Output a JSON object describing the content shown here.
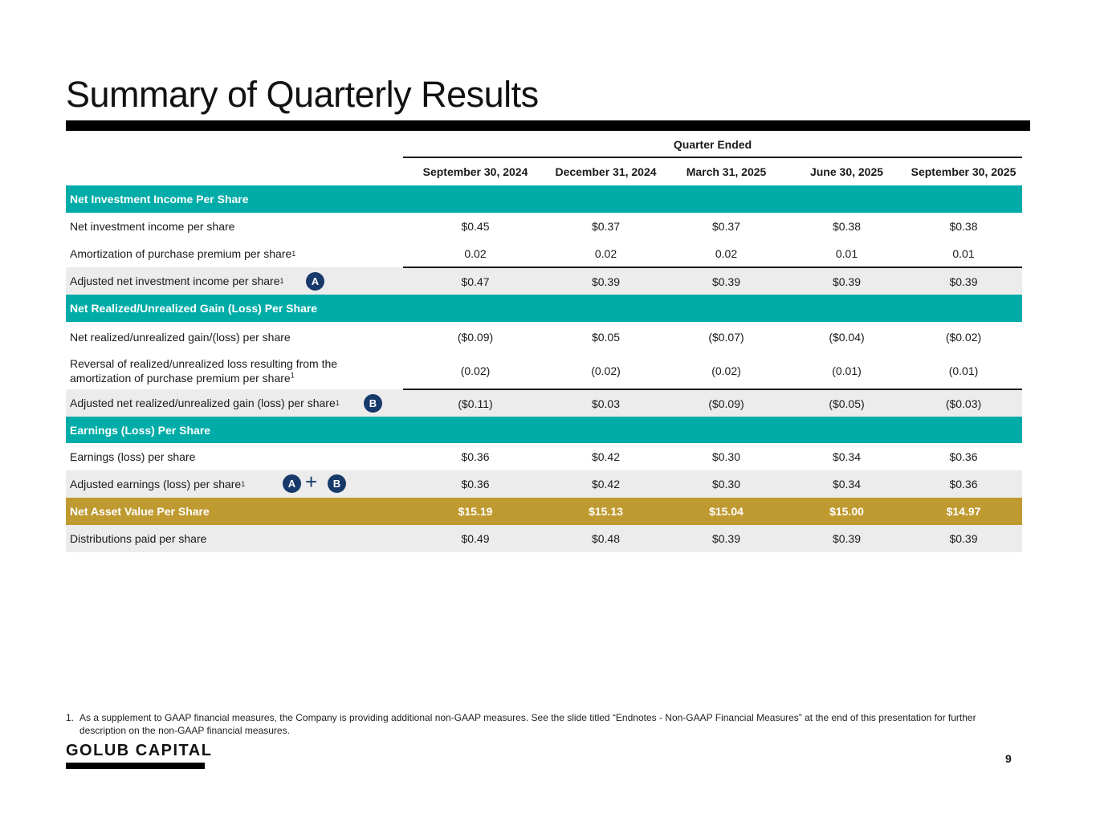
{
  "title": "Summary of Quarterly Results",
  "quarter_ended": "Quarter Ended",
  "columns": [
    "September 30, 2024",
    "December 31, 2024",
    "March 31, 2025",
    "June 30, 2025",
    "September 30, 2025"
  ],
  "sections": {
    "nii": "Net Investment Income Per Share",
    "gain": "Net Realized/Unrealized Gain (Loss) Per Share",
    "eps": "Earnings (Loss) Per Share"
  },
  "rows": {
    "nii": {
      "label": "Net investment income per share",
      "values": [
        "$0.45",
        "$0.37",
        "$0.37",
        "$0.38",
        "$0.38"
      ]
    },
    "amort": {
      "label": "Amortization of purchase premium per share",
      "sup": "1",
      "values": [
        "0.02",
        "0.02",
        "0.02",
        "0.01",
        "0.01"
      ]
    },
    "adj_nii": {
      "label": "Adjusted net investment income per share",
      "sup": "1",
      "values": [
        "$0.47",
        "$0.39",
        "$0.39",
        "$0.39",
        "$0.39"
      ]
    },
    "gain": {
      "label": "Net realized/unrealized gain/(loss) per share",
      "values": [
        "($0.09)",
        "$0.05",
        "($0.07)",
        "($0.04)",
        "($0.02)"
      ]
    },
    "reversal": {
      "label_line1": "Reversal of realized/unrealized loss resulting from the",
      "label_line2": "amortization of purchase premium per share",
      "sup": "1",
      "values": [
        "(0.02)",
        "(0.02)",
        "(0.02)",
        "(0.01)",
        "(0.01)"
      ]
    },
    "adj_gain": {
      "label": "Adjusted net realized/unrealized gain (loss) per share",
      "sup": "1",
      "values": [
        "($0.11)",
        "$0.03",
        "($0.09)",
        "($0.05)",
        "($0.03)"
      ]
    },
    "eps": {
      "label": "Earnings (loss) per share",
      "values": [
        "$0.36",
        "$0.42",
        "$0.30",
        "$0.34",
        "$0.36"
      ]
    },
    "adj_eps": {
      "label": "Adjusted earnings (loss) per share",
      "sup": "1",
      "values": [
        "$0.36",
        "$0.42",
        "$0.30",
        "$0.34",
        "$0.36"
      ]
    },
    "nav": {
      "label": "Net Asset Value Per Share",
      "values": [
        "$15.19",
        "$15.13",
        "$15.04",
        "$15.00",
        "$14.97"
      ]
    },
    "dist": {
      "label": "Distributions paid per share",
      "values": [
        "$0.49",
        "$0.48",
        "$0.39",
        "$0.39",
        "$0.39"
      ]
    }
  },
  "badges": {
    "a": "A",
    "b": "B",
    "plus": "+"
  },
  "footnote": {
    "num": "1.",
    "text": "As a supplement to GAAP financial measures, the Company is providing additional non-GAAP measures. See the slide titled “Endnotes - Non-GAAP Financial Measures” at the end of this presentation for further description on the non-GAAP financial measures."
  },
  "logo": "GOLUB CAPITAL",
  "page_number": "9",
  "colors": {
    "teal": "#00aca8",
    "gold": "#bf9a30",
    "navy": "#173a6b",
    "shade": "#ececec"
  }
}
